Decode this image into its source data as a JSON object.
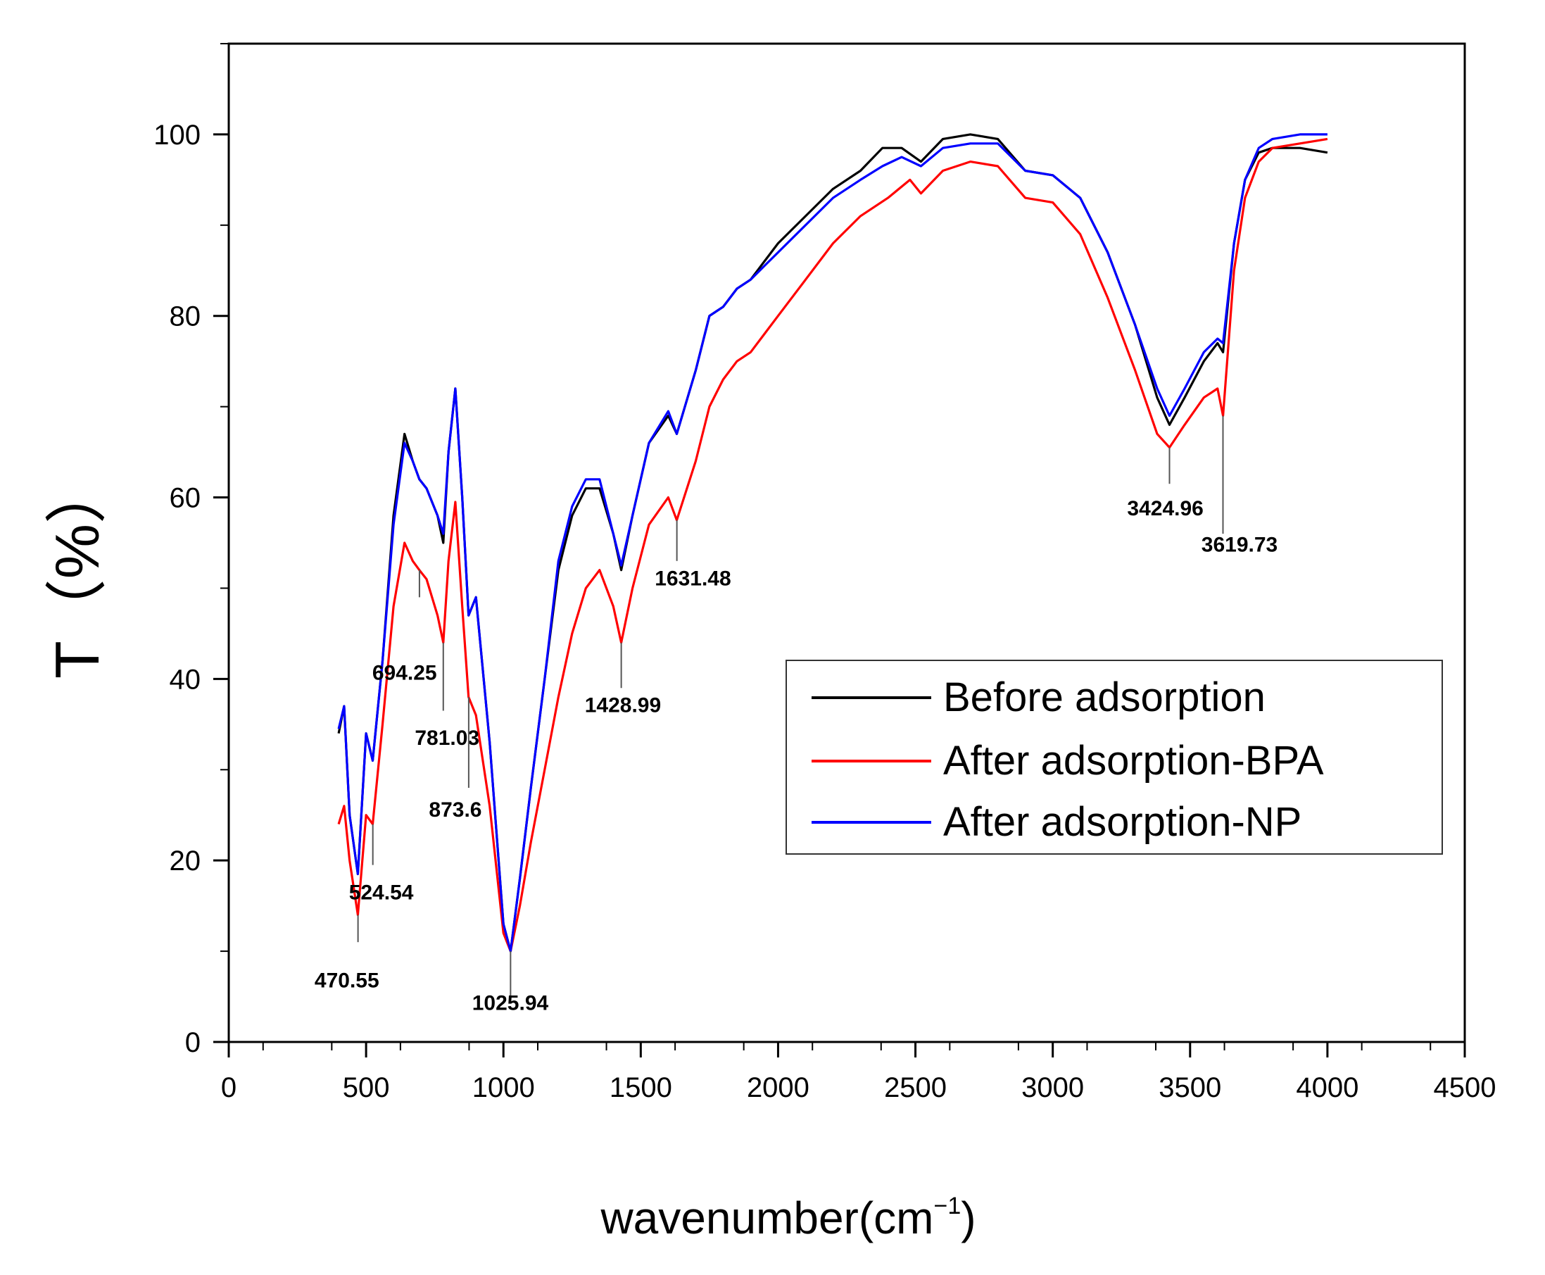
{
  "chart_data": {
    "type": "line",
    "xlabel": "wavenumber(cm",
    "xlabel_sup": "−1",
    "xlabel_close": ")",
    "ylabel": "T（%）",
    "xlim": [
      0,
      4500
    ],
    "ylim": [
      0,
      110
    ],
    "x_ticks": [
      0,
      500,
      1000,
      1500,
      2000,
      2500,
      3000,
      3500,
      4000,
      4500
    ],
    "y_ticks": [
      0,
      20,
      40,
      60,
      80,
      100
    ],
    "legend_position": "center-right",
    "series": [
      {
        "name": "Before adsorption",
        "color": "#000000",
        "points": [
          [
            400,
            34
          ],
          [
            420,
            37
          ],
          [
            440,
            25
          ],
          [
            470,
            18.5
          ],
          [
            500,
            34
          ],
          [
            524,
            31
          ],
          [
            560,
            42
          ],
          [
            600,
            58
          ],
          [
            640,
            67
          ],
          [
            670,
            64
          ],
          [
            694,
            62
          ],
          [
            720,
            61
          ],
          [
            760,
            58
          ],
          [
            781,
            55
          ],
          [
            800,
            65
          ],
          [
            825,
            72
          ],
          [
            850,
            60
          ],
          [
            873,
            47
          ],
          [
            900,
            49
          ],
          [
            950,
            33
          ],
          [
            1000,
            13
          ],
          [
            1026,
            10
          ],
          [
            1060,
            18
          ],
          [
            1100,
            28
          ],
          [
            1150,
            40
          ],
          [
            1200,
            52
          ],
          [
            1250,
            58
          ],
          [
            1300,
            61
          ],
          [
            1350,
            61
          ],
          [
            1400,
            56
          ],
          [
            1429,
            52
          ],
          [
            1470,
            58
          ],
          [
            1530,
            66
          ],
          [
            1600,
            69
          ],
          [
            1631,
            67
          ],
          [
            1700,
            74
          ],
          [
            1750,
            80
          ],
          [
            1800,
            81
          ],
          [
            1850,
            83
          ],
          [
            1900,
            84
          ],
          [
            1950,
            86
          ],
          [
            2000,
            88
          ],
          [
            2100,
            91
          ],
          [
            2200,
            94
          ],
          [
            2300,
            96
          ],
          [
            2380,
            98.5
          ],
          [
            2450,
            98.5
          ],
          [
            2520,
            97
          ],
          [
            2600,
            99.5
          ],
          [
            2700,
            100
          ],
          [
            2800,
            99.5
          ],
          [
            2900,
            96
          ],
          [
            3000,
            95.5
          ],
          [
            3100,
            93
          ],
          [
            3200,
            87
          ],
          [
            3300,
            79
          ],
          [
            3380,
            71
          ],
          [
            3425,
            68
          ],
          [
            3480,
            71
          ],
          [
            3550,
            75
          ],
          [
            3600,
            77
          ],
          [
            3620,
            76
          ],
          [
            3660,
            88
          ],
          [
            3700,
            95
          ],
          [
            3750,
            98
          ],
          [
            3800,
            98.5
          ],
          [
            3900,
            98.5
          ],
          [
            4000,
            98
          ]
        ]
      },
      {
        "name": "After adsorption-BPA",
        "color": "#ff0000",
        "points": [
          [
            400,
            24
          ],
          [
            420,
            26
          ],
          [
            440,
            20
          ],
          [
            470,
            14
          ],
          [
            500,
            25
          ],
          [
            524,
            24
          ],
          [
            560,
            35
          ],
          [
            600,
            48
          ],
          [
            640,
            55
          ],
          [
            670,
            53
          ],
          [
            694,
            52
          ],
          [
            720,
            51
          ],
          [
            760,
            47
          ],
          [
            781,
            44
          ],
          [
            800,
            53
          ],
          [
            825,
            59.5
          ],
          [
            850,
            48
          ],
          [
            873,
            38
          ],
          [
            900,
            36
          ],
          [
            950,
            26
          ],
          [
            1000,
            12
          ],
          [
            1026,
            10
          ],
          [
            1060,
            15
          ],
          [
            1100,
            22
          ],
          [
            1150,
            30
          ],
          [
            1200,
            38
          ],
          [
            1250,
            45
          ],
          [
            1300,
            50
          ],
          [
            1350,
            52
          ],
          [
            1400,
            48
          ],
          [
            1429,
            44
          ],
          [
            1470,
            50
          ],
          [
            1530,
            57
          ],
          [
            1600,
            60
          ],
          [
            1631,
            57.5
          ],
          [
            1700,
            64
          ],
          [
            1750,
            70
          ],
          [
            1800,
            73
          ],
          [
            1850,
            75
          ],
          [
            1900,
            76
          ],
          [
            1950,
            78
          ],
          [
            2000,
            80
          ],
          [
            2100,
            84
          ],
          [
            2200,
            88
          ],
          [
            2300,
            91
          ],
          [
            2400,
            93
          ],
          [
            2480,
            95
          ],
          [
            2520,
            93.5
          ],
          [
            2600,
            96
          ],
          [
            2700,
            97
          ],
          [
            2800,
            96.5
          ],
          [
            2900,
            93
          ],
          [
            3000,
            92.5
          ],
          [
            3100,
            89
          ],
          [
            3200,
            82
          ],
          [
            3300,
            74
          ],
          [
            3380,
            67
          ],
          [
            3425,
            65.5
          ],
          [
            3480,
            68
          ],
          [
            3550,
            71
          ],
          [
            3600,
            72
          ],
          [
            3620,
            69
          ],
          [
            3660,
            85
          ],
          [
            3700,
            93
          ],
          [
            3750,
            97
          ],
          [
            3800,
            98.5
          ],
          [
            3900,
            99
          ],
          [
            4000,
            99.5
          ]
        ]
      },
      {
        "name": "After adsorption-NP",
        "color": "#0000ff",
        "points": [
          [
            400,
            34.5
          ],
          [
            420,
            37
          ],
          [
            440,
            25
          ],
          [
            470,
            18.5
          ],
          [
            500,
            34
          ],
          [
            524,
            31
          ],
          [
            560,
            42
          ],
          [
            600,
            57
          ],
          [
            640,
            66
          ],
          [
            670,
            64
          ],
          [
            694,
            62
          ],
          [
            720,
            61
          ],
          [
            760,
            58
          ],
          [
            781,
            56
          ],
          [
            800,
            65
          ],
          [
            825,
            72
          ],
          [
            850,
            60
          ],
          [
            873,
            47
          ],
          [
            900,
            49
          ],
          [
            950,
            33
          ],
          [
            1000,
            13
          ],
          [
            1026,
            10
          ],
          [
            1060,
            18
          ],
          [
            1100,
            28
          ],
          [
            1150,
            40
          ],
          [
            1200,
            53
          ],
          [
            1250,
            59
          ],
          [
            1300,
            62
          ],
          [
            1350,
            62
          ],
          [
            1400,
            56
          ],
          [
            1429,
            52.5
          ],
          [
            1470,
            58
          ],
          [
            1530,
            66
          ],
          [
            1600,
            69.5
          ],
          [
            1631,
            67
          ],
          [
            1700,
            74
          ],
          [
            1750,
            80
          ],
          [
            1800,
            81
          ],
          [
            1850,
            83
          ],
          [
            1900,
            84
          ],
          [
            1950,
            85.5
          ],
          [
            2000,
            87
          ],
          [
            2100,
            90
          ],
          [
            2200,
            93
          ],
          [
            2300,
            95
          ],
          [
            2380,
            96.5
          ],
          [
            2450,
            97.5
          ],
          [
            2520,
            96.5
          ],
          [
            2600,
            98.5
          ],
          [
            2700,
            99
          ],
          [
            2800,
            99
          ],
          [
            2900,
            96
          ],
          [
            3000,
            95.5
          ],
          [
            3100,
            93
          ],
          [
            3200,
            87
          ],
          [
            3300,
            79
          ],
          [
            3380,
            72
          ],
          [
            3425,
            69
          ],
          [
            3480,
            72
          ],
          [
            3550,
            76
          ],
          [
            3600,
            77.5
          ],
          [
            3620,
            77
          ],
          [
            3660,
            88
          ],
          [
            3700,
            95
          ],
          [
            3750,
            98.5
          ],
          [
            3800,
            99.5
          ],
          [
            3900,
            100
          ],
          [
            4000,
            100
          ]
        ]
      }
    ],
    "annotations": [
      {
        "label": "470.55",
        "x": 470.55,
        "y1": 14,
        "y2": 11,
        "ty": 6.8,
        "tx": 430
      },
      {
        "label": "524.54",
        "x": 524.54,
        "y1": 24,
        "y2": 19.5,
        "ty": 16.5,
        "tx": 555
      },
      {
        "label": "694.25",
        "x": 694.25,
        "y1": 52,
        "y2": 49,
        "ty": 40.7,
        "tx": 640
      },
      {
        "label": "781.03",
        "x": 781.03,
        "y1": 44,
        "y2": 36.5,
        "ty": 33.5,
        "tx": 795
      },
      {
        "label": "873.6",
        "x": 873.6,
        "y1": 38,
        "y2": 28,
        "ty": 25.6,
        "tx": 825
      },
      {
        "label": "1025.94",
        "x": 1025.94,
        "y1": 10,
        "y2": 5,
        "ty": 4.3,
        "tx": 1025
      },
      {
        "label": "1428.99",
        "x": 1428.99,
        "y1": 44,
        "y2": 39,
        "ty": 37.1,
        "tx": 1435
      },
      {
        "label": "1631.48",
        "x": 1631.48,
        "y1": 57.5,
        "y2": 53,
        "ty": 51.1,
        "tx": 1690
      },
      {
        "label": "3424.96",
        "x": 3424.96,
        "y1": 65.5,
        "y2": 61.5,
        "ty": 58.8,
        "tx": 3410
      },
      {
        "label": "3619.73",
        "x": 3619.73,
        "y1": 69,
        "y2": 56,
        "ty": 54.8,
        "tx": 3680
      }
    ]
  }
}
